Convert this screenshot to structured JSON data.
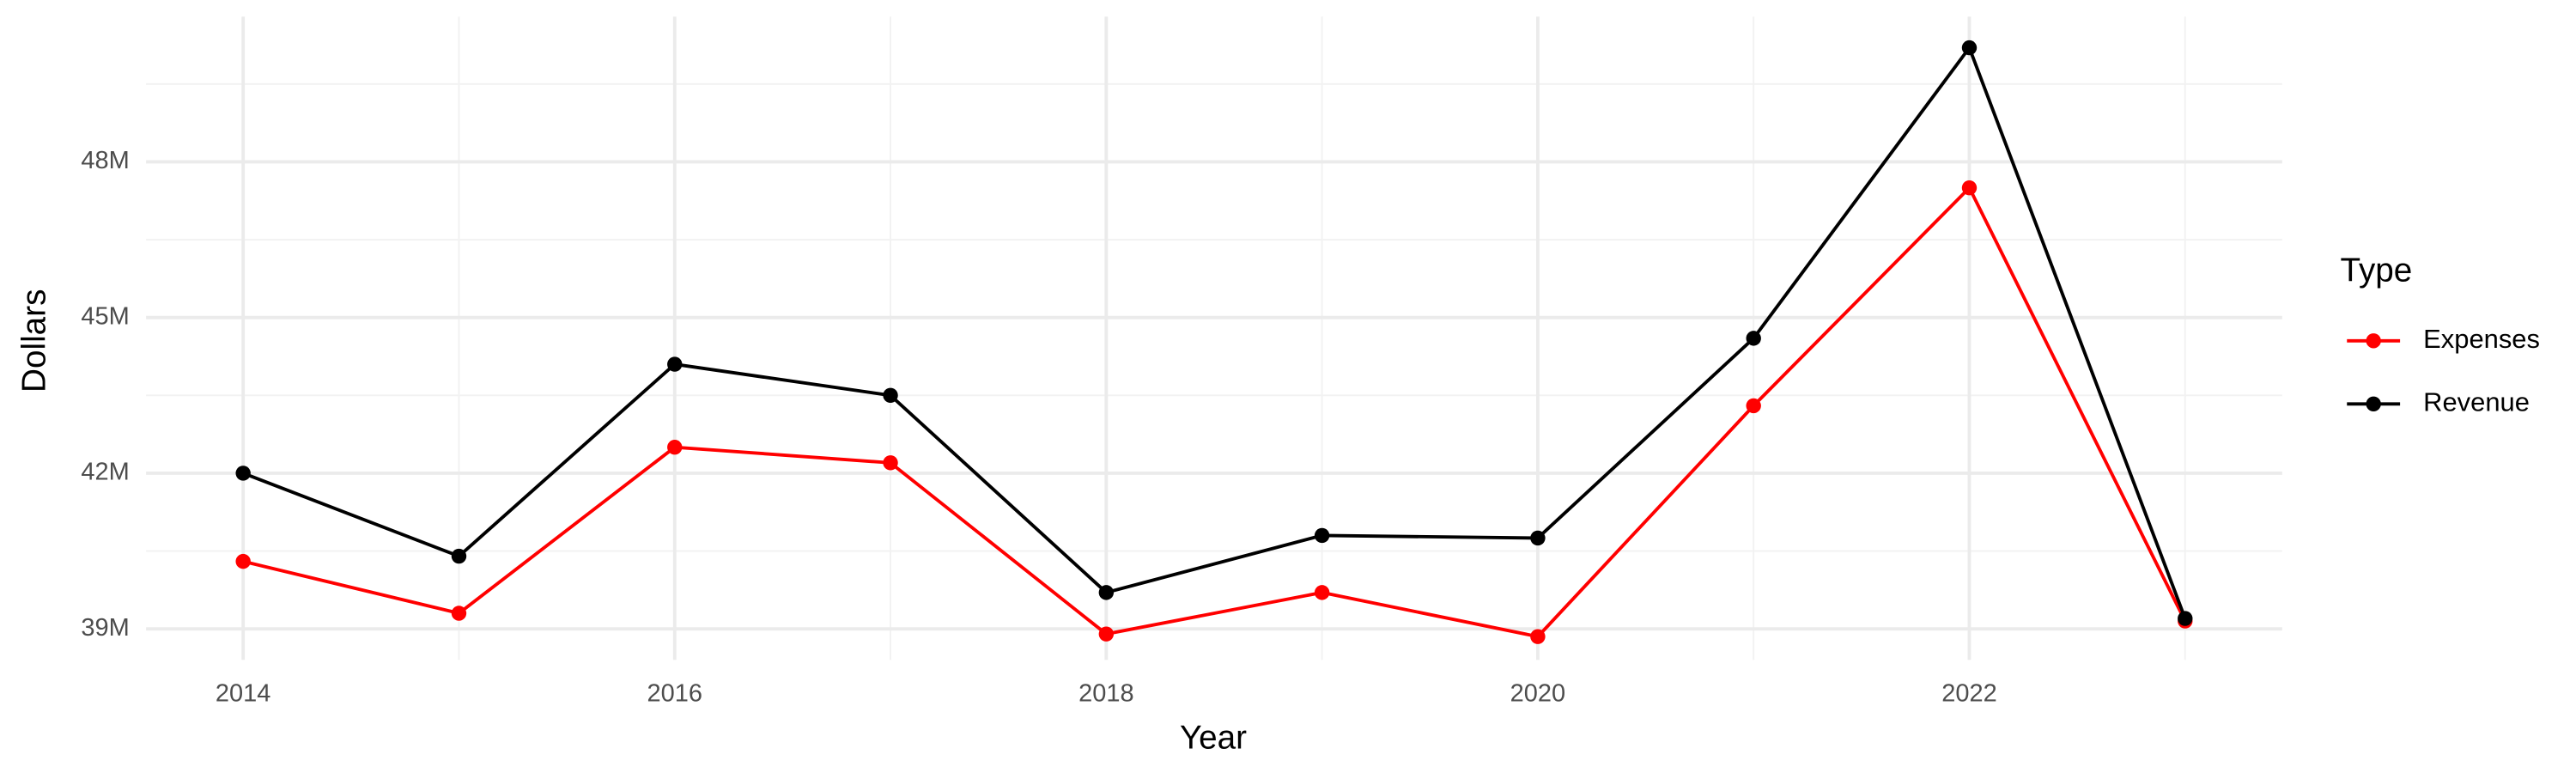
{
  "chart_data": {
    "type": "line",
    "x_label": "Year",
    "y_label": "Dollars",
    "legend_title": "Type",
    "x": [
      2014,
      2015,
      2016,
      2017,
      2018,
      2019,
      2020,
      2021,
      2022,
      2023
    ],
    "series": [
      {
        "name": "Expenses",
        "color": "#ff0000",
        "values": [
          40300000,
          39300000,
          42500000,
          42200000,
          38900000,
          39700000,
          38850000,
          43300000,
          47500000,
          39150000
        ]
      },
      {
        "name": "Revenue",
        "color": "#000000",
        "values": [
          42000000,
          40400000,
          44100000,
          43500000,
          39700000,
          40800000,
          40750000,
          44600000,
          50200000,
          39200000
        ]
      }
    ],
    "xlim": [
      2013.55,
      2023.45
    ],
    "xticks": [
      2014,
      2016,
      2018,
      2020,
      2022
    ],
    "ylim": [
      38400000,
      50800000
    ],
    "yticks": [
      {
        "value": 39000000,
        "label": "39M"
      },
      {
        "value": 42000000,
        "label": "42M"
      },
      {
        "value": 45000000,
        "label": "45M"
      },
      {
        "value": 48000000,
        "label": "48M"
      }
    ],
    "grid": true,
    "legend_position": "right"
  }
}
